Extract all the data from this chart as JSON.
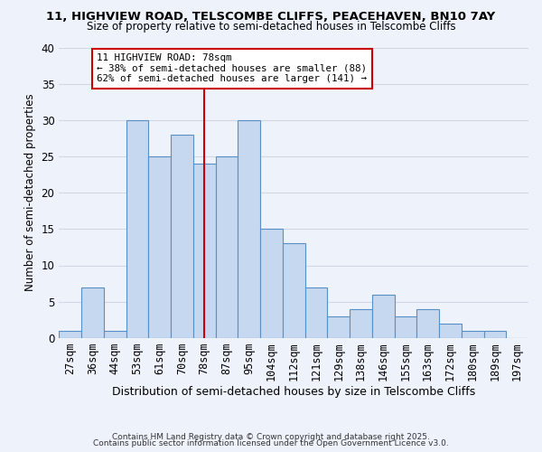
{
  "title1": "11, HIGHVIEW ROAD, TELSCOMBE CLIFFS, PEACEHAVEN, BN10 7AY",
  "title2": "Size of property relative to semi-detached houses in Telscombe Cliffs",
  "xlabel": "Distribution of semi-detached houses by size in Telscombe Cliffs",
  "ylabel": "Number of semi-detached properties",
  "bin_labels": [
    "27sqm",
    "36sqm",
    "44sqm",
    "53sqm",
    "61sqm",
    "70sqm",
    "78sqm",
    "87sqm",
    "95sqm",
    "104sqm",
    "112sqm",
    "121sqm",
    "129sqm",
    "138sqm",
    "146sqm",
    "155sqm",
    "163sqm",
    "172sqm",
    "180sqm",
    "189sqm",
    "197sqm"
  ],
  "bar_heights": [
    1,
    7,
    1,
    30,
    25,
    28,
    24,
    25,
    30,
    15,
    13,
    7,
    3,
    4,
    6,
    3,
    4,
    2,
    1,
    1,
    0
  ],
  "bar_color": "#c5d8f0",
  "bar_edge_color": "#5a8fc3",
  "grid_color": "#d0d8e8",
  "background_color": "#eef2fa",
  "marker_label": "11 HIGHVIEW ROAD: 78sqm",
  "annotation_line1": "← 38% of semi-detached houses are smaller (88)",
  "annotation_line2": "62% of semi-detached houses are larger (141) →",
  "marker_color": "#cc0000",
  "annotation_box_edge": "#cc0000",
  "ylim": [
    0,
    40
  ],
  "yticks": [
    0,
    5,
    10,
    15,
    20,
    25,
    30,
    35,
    40
  ],
  "footer1": "Contains HM Land Registry data © Crown copyright and database right 2025.",
  "footer2": "Contains public sector information licensed under the Open Government Licence v3.0."
}
